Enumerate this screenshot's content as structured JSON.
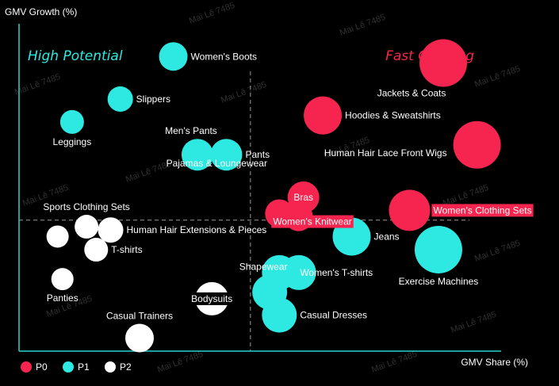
{
  "chart_data": {
    "type": "scatter",
    "xlabel": "GMV Share (%)",
    "ylabel": "GMV Growth (%)",
    "xlim": [
      0,
      100
    ],
    "ylim": [
      0,
      100
    ],
    "quadrant_labels": {
      "top_left": "High Potential",
      "top_right": "Fast Growing"
    },
    "divider": {
      "x": 48,
      "y": 40
    },
    "colors": {
      "P0": "#f5254f",
      "P1": "#2ee8e2",
      "P2": "#ffffff",
      "axis": "#27d3cf",
      "divider": "#9a9a9a",
      "high_potential": "#2ee8e2",
      "fast_growing": "#f5254f"
    },
    "legend": [
      {
        "name": "P0",
        "color": "#f5254f"
      },
      {
        "name": "P1",
        "color": "#2ee8e2"
      },
      {
        "name": "P2",
        "color": "#ffffff"
      }
    ],
    "watermark": "Mai Lê 7485",
    "points": [
      {
        "label": "Jackets & Coats",
        "x": 88,
        "y": 88,
        "size": 30,
        "group": "P0",
        "pos": "below-left"
      },
      {
        "label": "Hoodies & Sweatshirts",
        "x": 63,
        "y": 72,
        "size": 24,
        "group": "P0",
        "pos": "right"
      },
      {
        "label": "Human Hair Lace Front Wigs",
        "x": 95,
        "y": 63,
        "size": 30,
        "group": "P0",
        "pos": "left-below"
      },
      {
        "label": "Bras",
        "x": 59,
        "y": 47,
        "size": 20,
        "group": "P0",
        "pos": "center"
      },
      {
        "label": "Women's Knitwear",
        "x": 54,
        "y": 42,
        "size": 18,
        "group": "P0",
        "pos": "below-right",
        "boxed": true
      },
      {
        "label": "Women's Knitwear",
        "x": 58,
        "y": 41,
        "size": 18,
        "group": "P0",
        "pos": "none"
      },
      {
        "label": "Women's Clothing Sets",
        "x": 81,
        "y": 43,
        "size": 26,
        "group": "P0",
        "pos": "right",
        "boxed": true
      },
      {
        "label": "Women's Boots",
        "x": 32,
        "y": 90,
        "size": 18,
        "group": "P1",
        "pos": "right"
      },
      {
        "label": "Slippers",
        "x": 21,
        "y": 77,
        "size": 16,
        "group": "P1",
        "pos": "right"
      },
      {
        "label": "Leggings",
        "x": 11,
        "y": 70,
        "size": 15,
        "group": "P1",
        "pos": "below"
      },
      {
        "label": "Men's Pants",
        "x": 37,
        "y": 60,
        "size": 20,
        "group": "P1",
        "pos": "above-left"
      },
      {
        "label": "Pants",
        "x": 43,
        "y": 60,
        "size": 20,
        "group": "P1",
        "pos": "right"
      },
      {
        "label": "Pajamas & Loungewear",
        "x": 41,
        "y": 60,
        "size": 1,
        "group": "P1",
        "pos": "below",
        "labelOnly": true
      },
      {
        "label": "Jeans",
        "x": 69,
        "y": 35,
        "size": 24,
        "group": "P1",
        "pos": "right"
      },
      {
        "label": "Exercise Machines",
        "x": 87,
        "y": 31,
        "size": 30,
        "group": "P1",
        "pos": "below"
      },
      {
        "label": "Women's T-shirts",
        "x": 54,
        "y": 24,
        "size": 22,
        "group": "P1",
        "pos": "right"
      },
      {
        "label": "Women's T-shirts",
        "x": 58,
        "y": 24,
        "size": 22,
        "group": "P1",
        "pos": "none"
      },
      {
        "label": "Shapewear",
        "x": 52,
        "y": 18,
        "size": 22,
        "group": "P1",
        "pos": "above-left"
      },
      {
        "label": "Casual Dresses",
        "x": 54,
        "y": 11,
        "size": 22,
        "group": "P1",
        "pos": "right"
      },
      {
        "label": "Sports Clothing Sets",
        "x": 14,
        "y": 38,
        "size": 15,
        "group": "P2",
        "pos": "above"
      },
      {
        "label": "Human Hair Extensions & Pieces",
        "x": 19,
        "y": 37,
        "size": 16,
        "group": "P2",
        "pos": "right"
      },
      {
        "label": "T-shirts",
        "x": 16,
        "y": 31,
        "size": 15,
        "group": "P2",
        "pos": "right"
      },
      {
        "label": "Panties",
        "x": 9,
        "y": 22,
        "size": 14,
        "group": "P2",
        "pos": "below"
      },
      {
        "label": "",
        "x": 8,
        "y": 35,
        "size": 14,
        "group": "P2",
        "pos": "none"
      },
      {
        "label": "Bodysuits",
        "x": 40,
        "y": 16,
        "size": 21,
        "group": "P2",
        "pos": "center",
        "boxedDark": true
      },
      {
        "label": "Casual Trainers",
        "x": 25,
        "y": 4,
        "size": 18,
        "group": "P2",
        "pos": "above"
      }
    ]
  }
}
